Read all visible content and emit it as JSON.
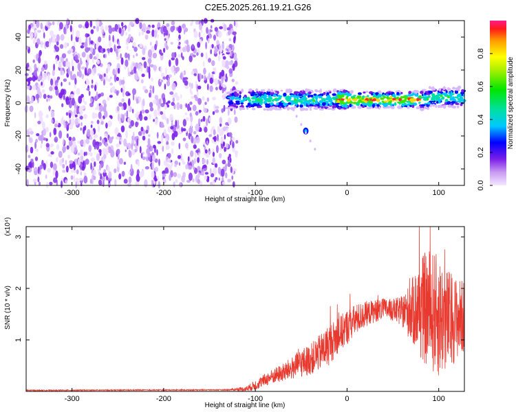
{
  "title": "C2E5.2025.261.19.21.G26",
  "chart_data": [
    {
      "type": "heatmap",
      "name": "spectrogram",
      "xlabel": "Height of straight line (km)",
      "ylabel": "Frequency (Hz)",
      "xlim": [
        -350,
        128
      ],
      "ylim": [
        -50,
        50
      ],
      "xticks": [
        -300,
        -200,
        -100,
        0,
        100
      ],
      "yticks": [
        -40,
        -20,
        0,
        20,
        40
      ],
      "colorbar": {
        "label": "Normalized spectral amplitude",
        "range": [
          0,
          1
        ],
        "ticks": [
          "0.0",
          "0.2",
          "0.4",
          "0.6",
          "0.8"
        ],
        "tick_values": [
          0.0,
          0.2,
          0.4,
          0.6,
          0.8
        ]
      },
      "features": {
        "noise_region_x": [
          -350,
          -125
        ],
        "signal_band_x": [
          -130,
          128
        ],
        "signal_band_freq_hz": 2,
        "signal_peak_amplitude_x": [
          -10,
          80
        ],
        "secondary_blob": {
          "x": -45,
          "freq_hz": -17
        }
      }
    },
    {
      "type": "line",
      "name": "snr",
      "xlabel": "Height of straight line (km)",
      "ylabel": "SNR (10 * v/v)",
      "multiplier": "(x10⁴)",
      "xlim": [
        -350,
        128
      ],
      "ylim": [
        0,
        3.2
      ],
      "xticks": [
        -300,
        -200,
        -100,
        0,
        100
      ],
      "yticks": [
        1,
        2,
        3
      ],
      "color": "#e8392f",
      "envelope": {
        "x": [
          -350,
          -130,
          -110,
          -100,
          -90,
          -80,
          -70,
          -60,
          -50,
          -40,
          -30,
          -20,
          -10,
          0,
          10,
          20,
          30,
          40,
          50,
          60,
          70,
          80,
          90,
          100,
          110,
          120,
          128
        ],
        "mean": [
          0.02,
          0.03,
          0.05,
          0.12,
          0.22,
          0.3,
          0.36,
          0.45,
          0.55,
          0.62,
          0.75,
          0.9,
          1.08,
          1.25,
          1.4,
          1.5,
          1.56,
          1.6,
          1.58,
          1.55,
          1.55,
          1.62,
          1.58,
          1.45,
          1.38,
          1.42,
          1.45
        ],
        "amp": [
          0.01,
          0.01,
          0.05,
          0.1,
          0.12,
          0.15,
          0.18,
          0.22,
          0.28,
          0.3,
          0.35,
          0.4,
          0.35,
          0.35,
          0.3,
          0.25,
          0.22,
          0.2,
          0.22,
          0.3,
          0.6,
          1.0,
          1.2,
          1.2,
          1.0,
          0.8,
          0.7
        ]
      }
    }
  ]
}
